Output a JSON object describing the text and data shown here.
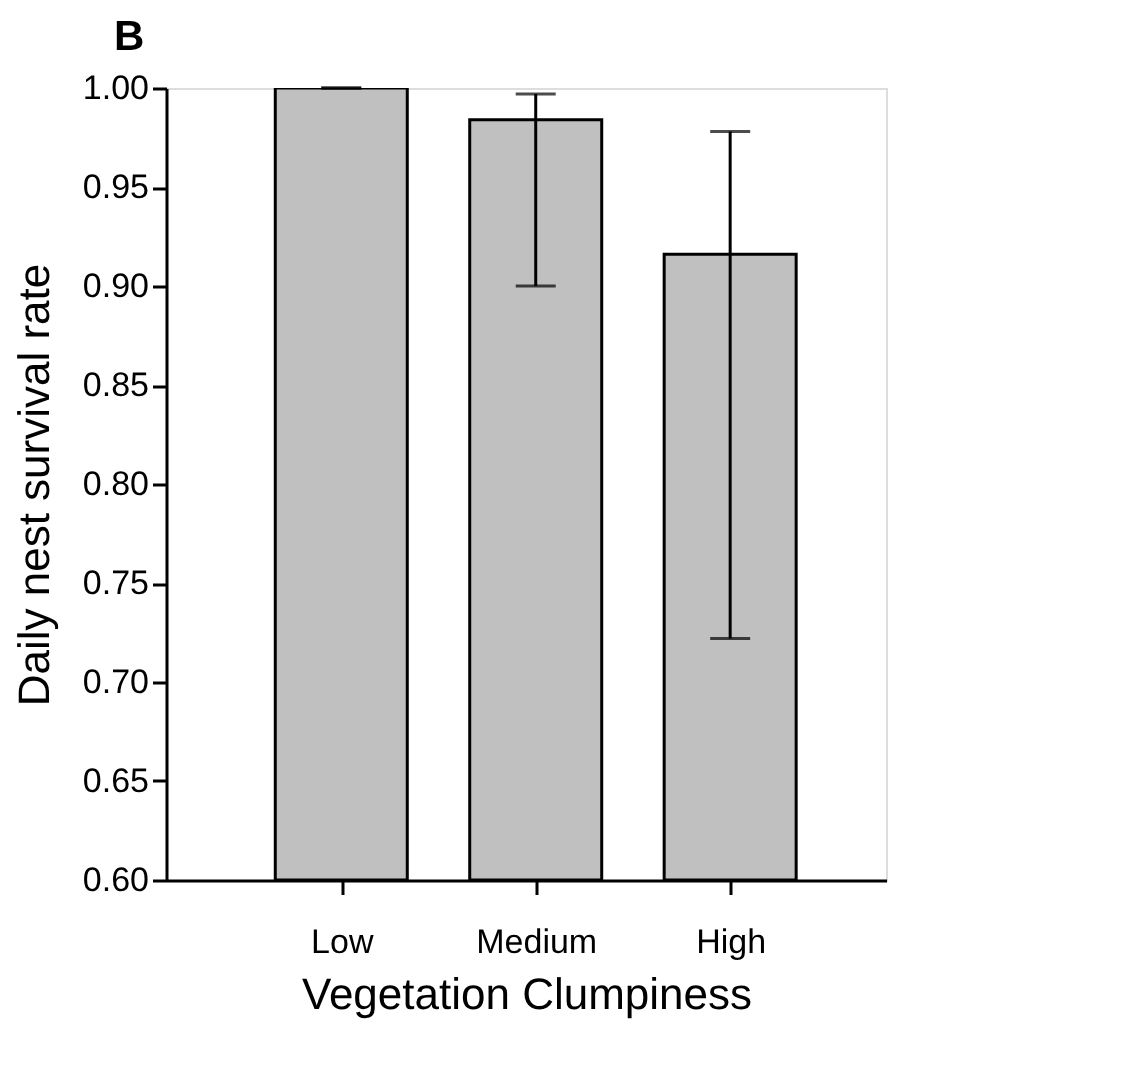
{
  "chart_data": {
    "type": "bar",
    "xlabel": "Vegetation Clumpiness",
    "ylabel": "Daily nest survival rate",
    "annotations": [
      "B"
    ],
    "categories": [
      "Low",
      "Medium",
      "High"
    ],
    "values": [
      1.0,
      0.984,
      0.916
    ],
    "errors": [
      0,
      [
        0.9,
        0.997
      ],
      [
        0.722,
        0.978
      ]
    ],
    "color": "#c0c0c0",
    "ylim": [
      0.6,
      1.0
    ],
    "yticks": [
      {
        "value": 0.6,
        "label": "0.60"
      },
      {
        "value": 0.65,
        "label": "0.65"
      },
      {
        "value": 0.7,
        "label": "0.70"
      },
      {
        "value": 0.75,
        "label": "0.75"
      },
      {
        "value": 0.8,
        "label": "0.80"
      },
      {
        "value": 0.85,
        "label": "0.85"
      },
      {
        "value": 0.9,
        "label": "0.90"
      },
      {
        "value": 0.95,
        "label": "0.95"
      },
      {
        "value": 1.0,
        "label": "1.00"
      }
    ],
    "grid": false
  }
}
